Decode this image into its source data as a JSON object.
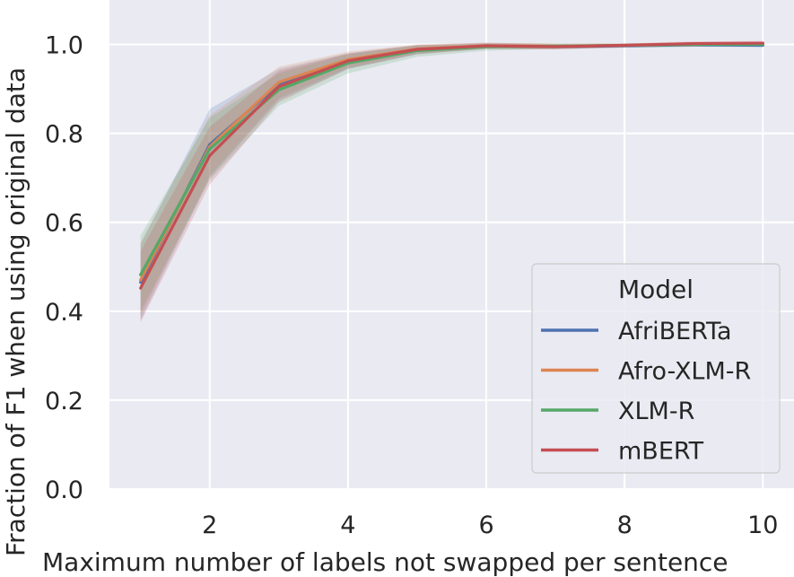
{
  "chart_data": {
    "type": "line",
    "xlabel": "Maximum number of labels not swapped per sentence",
    "ylabel": "Fraction of F1 when using original data",
    "xlim": [
      0.55,
      10.45
    ],
    "ylim": [
      0.0,
      1.1
    ],
    "xticks": [
      2,
      4,
      6,
      8,
      10
    ],
    "yticks": [
      0.0,
      0.2,
      0.4,
      0.6,
      0.8,
      1.0
    ],
    "grid": true,
    "legend": {
      "title": "Model",
      "position": "lower-right"
    },
    "x": [
      1,
      2,
      3,
      4,
      5,
      6,
      7,
      8,
      9,
      10
    ],
    "series": [
      {
        "name": "AfriBERTa",
        "color": "#4c72b0",
        "values": [
          0.465,
          0.775,
          0.91,
          0.962,
          0.988,
          0.996,
          0.995,
          0.997,
          0.999,
          0.998
        ],
        "lower": [
          0.38,
          0.7,
          0.875,
          0.945,
          0.978,
          0.99,
          0.99,
          0.993,
          0.995,
          0.994
        ],
        "upper": [
          0.55,
          0.855,
          0.945,
          0.98,
          0.998,
          1.002,
          1.0,
          1.001,
          1.003,
          1.002
        ]
      },
      {
        "name": "Afro-XLM-R",
        "color": "#dd8452",
        "values": [
          0.47,
          0.77,
          0.915,
          0.966,
          0.99,
          0.997,
          0.996,
          0.998,
          1.0,
          1.001
        ],
        "lower": [
          0.39,
          0.705,
          0.88,
          0.948,
          0.98,
          0.99,
          0.99,
          0.994,
          0.995,
          0.996
        ],
        "upper": [
          0.555,
          0.84,
          0.95,
          0.984,
          1.0,
          1.004,
          1.002,
          1.002,
          1.005,
          1.006
        ]
      },
      {
        "name": "XLM-R",
        "color": "#55a868",
        "values": [
          0.482,
          0.765,
          0.898,
          0.958,
          0.986,
          0.995,
          0.996,
          0.998,
          1.0,
          1.0
        ],
        "lower": [
          0.4,
          0.695,
          0.862,
          0.935,
          0.972,
          0.986,
          0.99,
          0.993,
          0.995,
          0.995
        ],
        "upper": [
          0.57,
          0.835,
          0.935,
          0.978,
          0.998,
          1.003,
          1.002,
          1.002,
          1.005,
          1.005
        ]
      },
      {
        "name": "mBERT",
        "color": "#c44e52",
        "values": [
          0.452,
          0.75,
          0.905,
          0.963,
          0.989,
          0.997,
          0.995,
          0.998,
          1.002,
          1.003
        ],
        "lower": [
          0.375,
          0.685,
          0.87,
          0.945,
          0.978,
          0.99,
          0.989,
          0.993,
          0.997,
          0.998
        ],
        "upper": [
          0.535,
          0.815,
          0.94,
          0.98,
          0.999,
          1.004,
          1.001,
          1.002,
          1.007,
          1.008
        ]
      }
    ]
  }
}
